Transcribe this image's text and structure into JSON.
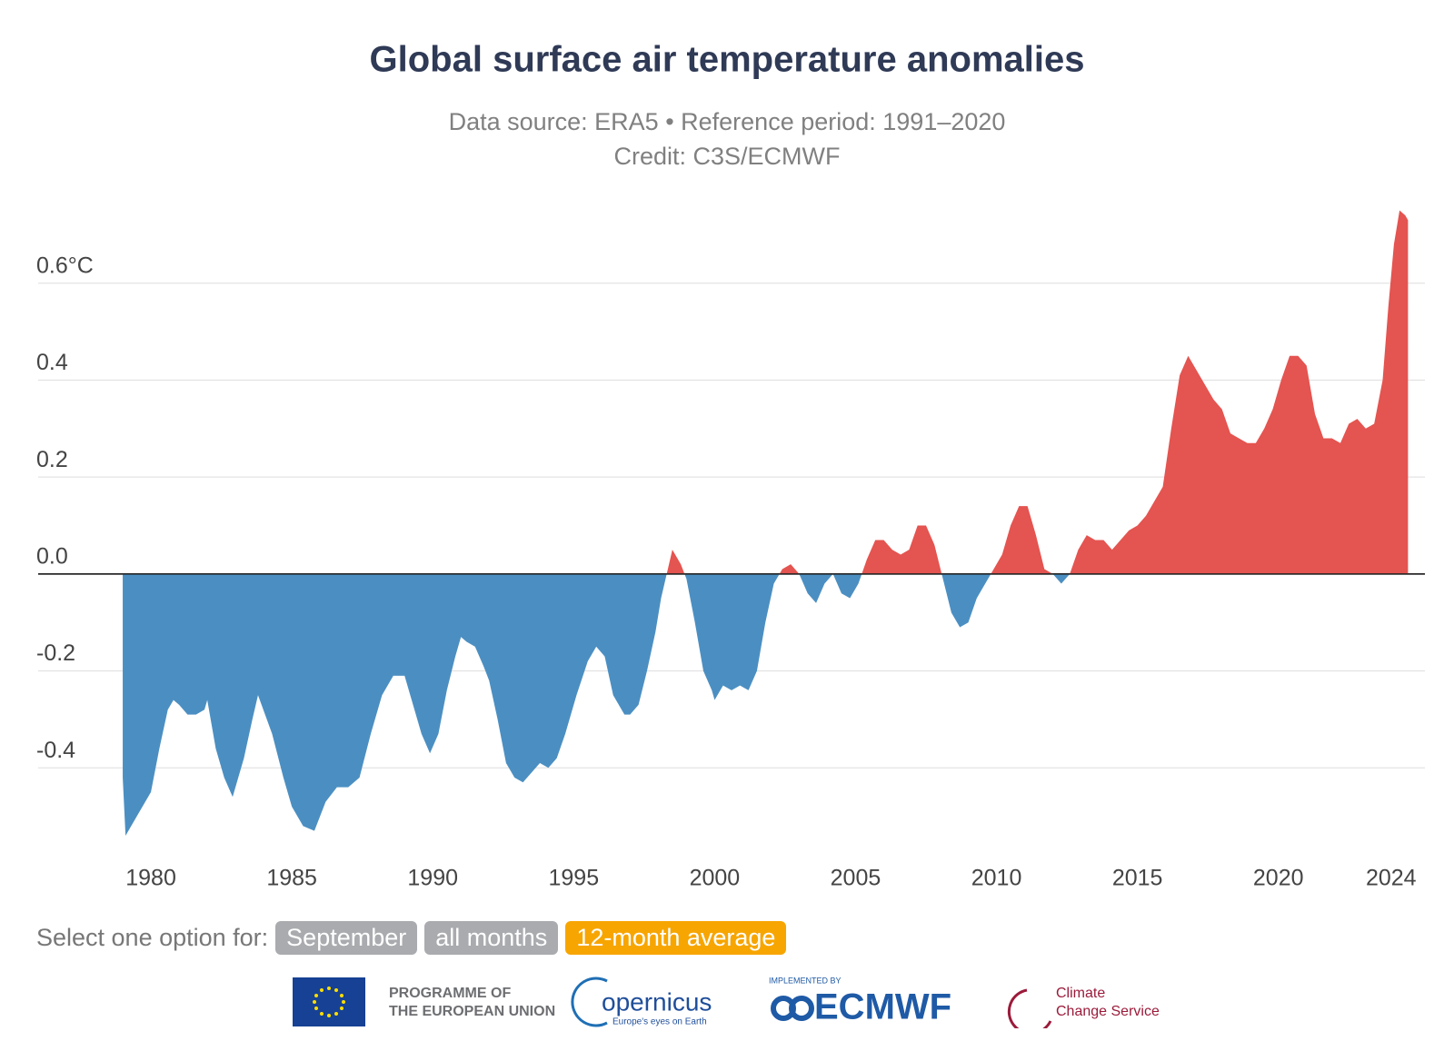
{
  "chart_data": {
    "type": "area",
    "title": "Global surface air temperature anomalies",
    "subtitle": "Data source: ERA5 • Reference period: 1991–2020",
    "credit": "Credit: C3S/ECMWF",
    "x": [
      1979.0,
      1979.1,
      1979.5,
      1980.0,
      1980.3,
      1980.6,
      1980.8,
      1981.0,
      1981.3,
      1981.6,
      1981.9,
      1982.0,
      1982.3,
      1982.6,
      1982.9,
      1983.3,
      1983.6,
      1983.8,
      1984.3,
      1984.7,
      1985.0,
      1985.4,
      1985.8,
      1986.2,
      1986.6,
      1987.0,
      1987.4,
      1987.8,
      1988.2,
      1988.6,
      1989.0,
      1989.3,
      1989.6,
      1989.9,
      1990.2,
      1990.5,
      1990.8,
      1991.0,
      1991.2,
      1991.5,
      1991.8,
      1992.0,
      1992.3,
      1992.6,
      1992.9,
      1993.2,
      1993.5,
      1993.8,
      1994.1,
      1994.4,
      1994.7,
      1995.1,
      1995.5,
      1995.8,
      1996.1,
      1996.4,
      1996.8,
      1997.0,
      1997.3,
      1997.6,
      1997.9,
      1998.1,
      1998.3,
      1998.5,
      1998.8,
      1999.0,
      1999.3,
      1999.6,
      1999.9,
      2000.0,
      2000.3,
      2000.6,
      2000.9,
      2001.2,
      2001.5,
      2001.8,
      2002.1,
      2002.4,
      2002.7,
      2003.0,
      2003.3,
      2003.6,
      2003.9,
      2004.2,
      2004.5,
      2004.8,
      2005.1,
      2005.4,
      2005.7,
      2006.0,
      2006.3,
      2006.6,
      2006.9,
      2007.2,
      2007.5,
      2007.8,
      2008.1,
      2008.4,
      2008.7,
      2009.0,
      2009.3,
      2009.6,
      2009.9,
      2010.2,
      2010.5,
      2010.8,
      2011.1,
      2011.4,
      2011.7,
      2012.0,
      2012.3,
      2012.6,
      2012.9,
      2013.2,
      2013.5,
      2013.8,
      2014.1,
      2014.4,
      2014.7,
      2015.0,
      2015.3,
      2015.6,
      2015.9,
      2016.2,
      2016.5,
      2016.8,
      2017.1,
      2017.4,
      2017.7,
      2018.0,
      2018.3,
      2018.6,
      2018.9,
      2019.2,
      2019.5,
      2019.8,
      2020.1,
      2020.4,
      2020.7,
      2021.0,
      2021.3,
      2021.6,
      2021.9,
      2022.2,
      2022.5,
      2022.8,
      2023.1,
      2023.4,
      2023.7,
      2023.9,
      2024.1,
      2024.3,
      2024.5,
      2024.6
    ],
    "values": [
      -0.42,
      -0.54,
      -0.5,
      -0.45,
      -0.36,
      -0.28,
      -0.26,
      -0.27,
      -0.29,
      -0.29,
      -0.28,
      -0.26,
      -0.36,
      -0.42,
      -0.46,
      -0.38,
      -0.3,
      -0.25,
      -0.33,
      -0.42,
      -0.48,
      -0.52,
      -0.53,
      -0.47,
      -0.44,
      -0.44,
      -0.42,
      -0.33,
      -0.25,
      -0.21,
      -0.21,
      -0.27,
      -0.33,
      -0.37,
      -0.33,
      -0.24,
      -0.17,
      -0.13,
      -0.14,
      -0.15,
      -0.19,
      -0.22,
      -0.3,
      -0.39,
      -0.42,
      -0.43,
      -0.41,
      -0.39,
      -0.4,
      -0.38,
      -0.33,
      -0.25,
      -0.18,
      -0.15,
      -0.17,
      -0.25,
      -0.29,
      -0.29,
      -0.27,
      -0.2,
      -0.12,
      -0.05,
      0.0,
      0.05,
      0.02,
      -0.01,
      -0.1,
      -0.2,
      -0.24,
      -0.26,
      -0.23,
      -0.24,
      -0.23,
      -0.24,
      -0.2,
      -0.1,
      -0.02,
      0.01,
      0.02,
      0.0,
      -0.04,
      -0.06,
      -0.02,
      0.0,
      -0.04,
      -0.05,
      -0.02,
      0.03,
      0.07,
      0.07,
      0.05,
      0.04,
      0.05,
      0.1,
      0.1,
      0.06,
      -0.01,
      -0.08,
      -0.11,
      -0.1,
      -0.05,
      -0.02,
      0.01,
      0.04,
      0.1,
      0.14,
      0.14,
      0.08,
      0.01,
      0.0,
      -0.02,
      0.0,
      0.05,
      0.08,
      0.07,
      0.07,
      0.05,
      0.07,
      0.09,
      0.1,
      0.12,
      0.15,
      0.18,
      0.3,
      0.41,
      0.45,
      0.42,
      0.39,
      0.36,
      0.34,
      0.29,
      0.28,
      0.27,
      0.27,
      0.3,
      0.34,
      0.4,
      0.45,
      0.45,
      0.43,
      0.33,
      0.28,
      0.28,
      0.27,
      0.31,
      0.32,
      0.3,
      0.31,
      0.4,
      0.55,
      0.68,
      0.75,
      0.74,
      0.73
    ],
    "color_above": "#e45450",
    "color_below": "#4b8fc2",
    "xlim": [
      1976,
      2025.2
    ],
    "xticks": [
      1980,
      1985,
      1990,
      1995,
      2000,
      2005,
      2010,
      2015,
      2020,
      2024
    ],
    "ylim": [
      -0.6,
      0.8
    ],
    "yticks": [
      -0.4,
      -0.2,
      {
        "value": 0,
        "label": "0.0"
      },
      0.2,
      0.4,
      {
        "value": 0.6,
        "label": "0.6°C"
      }
    ],
    "grid": true
  },
  "controls": {
    "label": "Select one option for:",
    "options": [
      "September",
      "all months",
      "12-month average"
    ],
    "active": 2
  },
  "footer": {
    "eu": "PROGRAMME OF",
    "eu2": "THE EUROPEAN UNION",
    "copernicus": "opernicus",
    "copernicus_tag": "Europe's eyes on Earth",
    "implemented": "IMPLEMENTED BY",
    "ecmwf": "ECMWF",
    "c3s": "Climate",
    "c3s2": "Change Service"
  }
}
